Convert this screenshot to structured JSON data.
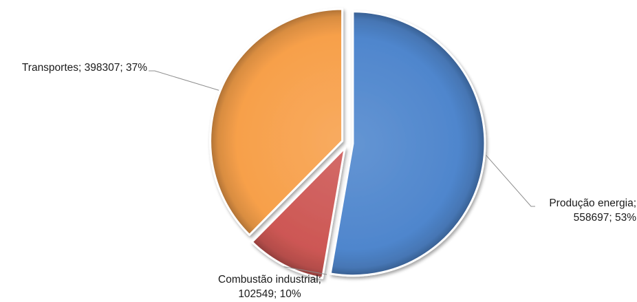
{
  "chart_data": {
    "type": "pie",
    "exploded": true,
    "start_angle_deg": 0,
    "direction": "clockwise",
    "slices": [
      {
        "name": "Produção energia",
        "value": 558697,
        "percent": "53%",
        "color": "#4f86cd",
        "label_lines": [
          "Produção energia;",
          "558697; 53%"
        ]
      },
      {
        "name": "Combustão industrial",
        "value": 102549,
        "percent": "10%",
        "color": "#cd5754",
        "label_lines": [
          "Combustão industrial;",
          "102549; 10%"
        ]
      },
      {
        "name": "Transportes",
        "value": 398307,
        "percent": "37%",
        "color": "#f7a04a",
        "label_lines": [
          "Transportes; 398307; 37%"
        ]
      }
    ]
  }
}
